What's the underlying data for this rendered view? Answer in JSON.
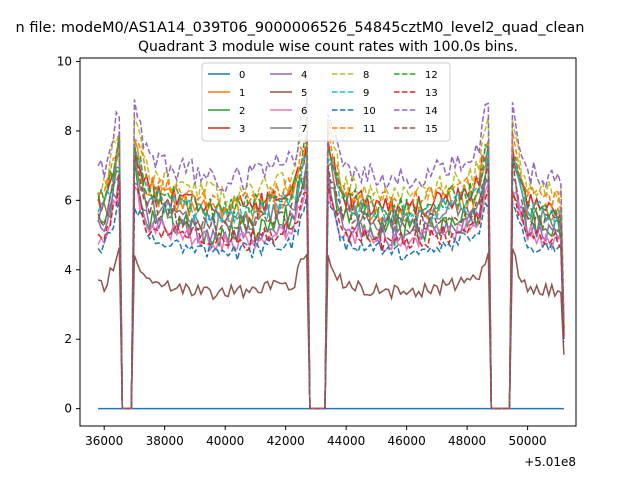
{
  "chart_data": {
    "type": "line",
    "suptitle": "n file: modeM0/AS1A14_039T06_9000006526_54845cztM0_level2_quad_clean",
    "title": "Quadrant 3 module wise count rates with 100.0s bins.",
    "xlabel": "",
    "ylabel": "",
    "x_offset_label": "+5.01e8",
    "xlim": [
      35200,
      51600
    ],
    "ylim": [
      -0.5,
      10.1
    ],
    "x_ticks": [
      36000,
      38000,
      40000,
      42000,
      44000,
      46000,
      48000,
      50000
    ],
    "y_ticks": [
      0,
      2,
      4,
      6,
      8,
      10
    ],
    "x_start": 35800,
    "x_end": 51200,
    "gaps": [
      [
        36550,
        36950
      ],
      [
        42750,
        43350
      ],
      [
        48750,
        49450
      ]
    ],
    "bin_width": 100,
    "legend_location": "upper center",
    "series": [
      {
        "name": "0",
        "color": "#1f77b4",
        "dash": "solid",
        "level": 0.0,
        "noise": 0.0
      },
      {
        "name": "1",
        "color": "#ff7f0e",
        "dash": "solid",
        "level": 5.9,
        "noise": 0.35
      },
      {
        "name": "2",
        "color": "#2ca02c",
        "dash": "solid",
        "level": 5.3,
        "noise": 0.45
      },
      {
        "name": "3",
        "color": "#d62728",
        "dash": "solid",
        "level": 6.0,
        "noise": 0.35
      },
      {
        "name": "4",
        "color": "#9467bd",
        "dash": "solid",
        "level": 5.2,
        "noise": 0.3
      },
      {
        "name": "5",
        "color": "#8c564b",
        "dash": "solid",
        "level": 3.5,
        "noise": 0.22
      },
      {
        "name": "6",
        "color": "#e377c2",
        "dash": "solid",
        "level": 5.0,
        "noise": 0.3
      },
      {
        "name": "7",
        "color": "#7f7f7f",
        "dash": "solid",
        "level": 5.6,
        "noise": 0.3
      },
      {
        "name": "8",
        "color": "#bcbd22",
        "dash": "dashed",
        "level": 6.4,
        "noise": 0.35
      },
      {
        "name": "9",
        "color": "#17becf",
        "dash": "dashed",
        "level": 5.8,
        "noise": 0.3
      },
      {
        "name": "10",
        "color": "#1f77b4",
        "dash": "dashed",
        "level": 4.7,
        "noise": 0.25
      },
      {
        "name": "11",
        "color": "#ff7f0e",
        "dash": "dashed",
        "level": 6.2,
        "noise": 0.3
      },
      {
        "name": "12",
        "color": "#2ca02c",
        "dash": "dashed",
        "level": 6.0,
        "noise": 0.35
      },
      {
        "name": "13",
        "color": "#d62728",
        "dash": "dashed",
        "level": 5.0,
        "noise": 0.3
      },
      {
        "name": "14",
        "color": "#9467bd",
        "dash": "dashed",
        "level": 6.9,
        "noise": 0.4
      },
      {
        "name": "15",
        "color": "#8c564b",
        "dash": "dashed",
        "level": 5.5,
        "noise": 0.3
      }
    ]
  }
}
